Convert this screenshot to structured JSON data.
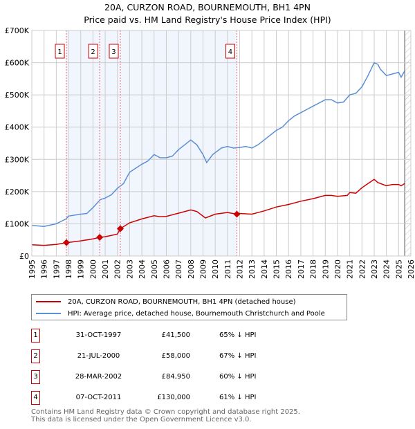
{
  "title_line1": "20A, CURZON ROAD, BOURNEMOUTH, BH1 4PN",
  "title_line2": "Price paid vs. HM Land Registry's House Price Index (HPI)",
  "chart_data": {
    "type": "line",
    "title": "20A, CURZON ROAD, BOURNEMOUTH, BH1 4PN — Price paid vs. HM Land Registry's House Price Index (HPI)",
    "xlim": [
      1995,
      2026
    ],
    "ylim": [
      0,
      700000
    ],
    "y_ticks": [
      0,
      100000,
      200000,
      300000,
      400000,
      500000,
      600000,
      700000
    ],
    "y_tick_labels": [
      "£0",
      "£100K",
      "£200K",
      "£300K",
      "£400K",
      "£500K",
      "£600K",
      "£700K"
    ],
    "x_ticks": [
      "1995",
      "1996",
      "1997",
      "1998",
      "1999",
      "2000",
      "2001",
      "2002",
      "2003",
      "2004",
      "2005",
      "2006",
      "2007",
      "2008",
      "2009",
      "2010",
      "2011",
      "2012",
      "2013",
      "2014",
      "2015",
      "2016",
      "2017",
      "2018",
      "2019",
      "2020",
      "2021",
      "2022",
      "2023",
      "2024",
      "2025",
      "2026"
    ],
    "grid": true,
    "data_end": 2025.5,
    "series": [
      {
        "name": "20A, CURZON ROAD, BOURNEMOUTH, BH1 4PN (detached house)",
        "color": "#cc0000",
        "x": [
          1995,
          1996,
          1997,
          1997.83,
          1999,
          2000,
          2000.55,
          2001,
          2002,
          2002.24,
          2003,
          2004,
          2005,
          2005.5,
          2006,
          2007,
          2008,
          2008.5,
          2009.2,
          2010,
          2011,
          2011.77,
          2012,
          2013,
          2014,
          2015,
          2016,
          2017,
          2018,
          2019,
          2019.5,
          2020,
          2020.8,
          2021,
          2021.5,
          2022,
          2022.5,
          2023,
          2023.3,
          2024,
          2024.5,
          2025,
          2025.2,
          2025.5
        ],
        "y": [
          35000,
          33000,
          36000,
          41500,
          47000,
          53000,
          58000,
          60000,
          68000,
          84950,
          103000,
          115000,
          125000,
          122000,
          123000,
          133000,
          143000,
          138000,
          118000,
          130000,
          135000,
          130000,
          132000,
          130000,
          140000,
          152000,
          160000,
          170000,
          178000,
          188000,
          188000,
          185000,
          188000,
          197000,
          195000,
          212000,
          225000,
          238000,
          228000,
          218000,
          222000,
          222000,
          218000,
          225000
        ]
      },
      {
        "name": "HPI: Average price, detached house, Bournemouth Christchurch and Poole",
        "color": "#5b8fd4",
        "x": [
          1995,
          1996,
          1997,
          1997.8,
          1998,
          1999,
          1999.5,
          2000,
          2000.6,
          2001,
          2001.5,
          2002,
          2002.5,
          2003,
          2004,
          2004.5,
          2005,
          2005.5,
          2006,
          2006.5,
          2007,
          2007.5,
          2008,
          2008.5,
          2009,
          2009.3,
          2009.8,
          2010.5,
          2011,
          2011.5,
          2012,
          2012.5,
          2013,
          2013.5,
          2014,
          2015,
          2015.5,
          2016,
          2016.5,
          2017,
          2017.5,
          2018,
          2018.5,
          2019,
          2019.5,
          2020,
          2020.5,
          2021,
          2021.5,
          2022,
          2022.5,
          2023,
          2023.3,
          2023.5,
          2024,
          2024.5,
          2025,
          2025.2,
          2025.5
        ],
        "y": [
          95000,
          92000,
          100000,
          115000,
          124000,
          130000,
          132000,
          150000,
          175000,
          180000,
          190000,
          210000,
          225000,
          260000,
          285000,
          295000,
          315000,
          305000,
          305000,
          310000,
          330000,
          345000,
          360000,
          345000,
          315000,
          290000,
          315000,
          335000,
          340000,
          335000,
          337000,
          340000,
          335000,
          345000,
          360000,
          390000,
          400000,
          420000,
          435000,
          445000,
          455000,
          465000,
          475000,
          485000,
          485000,
          475000,
          478000,
          500000,
          505000,
          525000,
          560000,
          600000,
          595000,
          580000,
          560000,
          565000,
          570000,
          555000,
          575000
        ]
      }
    ],
    "sales": [
      {
        "label": "1",
        "x": 1997.83,
        "y": 41500
      },
      {
        "label": "2",
        "x": 2000.55,
        "y": 58000
      },
      {
        "label": "3",
        "x": 2002.24,
        "y": 84950
      },
      {
        "label": "4",
        "x": 2011.77,
        "y": 130000
      }
    ]
  },
  "legend": {
    "red": "20A, CURZON ROAD, BOURNEMOUTH, BH1 4PN (detached house)",
    "blue": "HPI: Average price, detached house, Bournemouth Christchurch and Poole"
  },
  "transactions": [
    {
      "num": "1",
      "date": "31-OCT-1997",
      "price": "£41,500",
      "hpi": "65% ↓ HPI"
    },
    {
      "num": "2",
      "date": "21-JUL-2000",
      "price": "£58,000",
      "hpi": "67% ↓ HPI"
    },
    {
      "num": "3",
      "date": "28-MAR-2002",
      "price": "£84,950",
      "hpi": "60% ↓ HPI"
    },
    {
      "num": "4",
      "date": "07-OCT-2011",
      "price": "£130,000",
      "hpi": "61% ↓ HPI"
    }
  ],
  "footer": {
    "line1": "Contains HM Land Registry data © Crown copyright and database right 2025.",
    "line2": "This data is licensed under the Open Government Licence v3.0."
  }
}
